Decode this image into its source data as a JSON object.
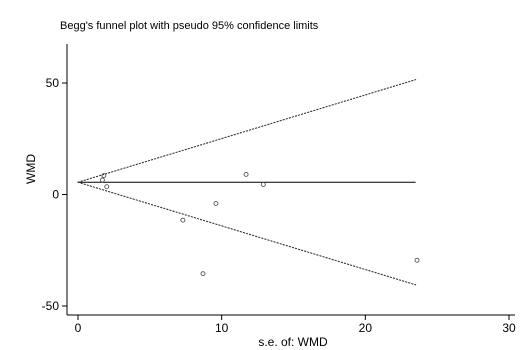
{
  "chart_data": {
    "type": "scatter",
    "title": "Begg's funnel plot with pseudo 95% confidence limits",
    "xlabel": "s.e. of: WMD",
    "ylabel": "WMD",
    "xlim": [
      0,
      30
    ],
    "ylim": [
      -50,
      50
    ],
    "xticks": [
      0,
      10,
      20,
      30
    ],
    "yticks": [
      -50,
      0,
      50
    ],
    "grid": false,
    "pooled_estimate": 5.5,
    "reference_line": {
      "x": [
        0,
        23.5
      ],
      "y": [
        5.5,
        5.5
      ]
    },
    "pseudo_ci_upper": {
      "x": [
        0,
        23.5
      ],
      "y": [
        5.5,
        51.5
      ]
    },
    "pseudo_ci_lower": {
      "x": [
        0,
        23.5
      ],
      "y": [
        5.5,
        -40.5
      ]
    },
    "points": [
      {
        "x": 1.8,
        "y": 8.5
      },
      {
        "x": 1.7,
        "y": 6.5
      },
      {
        "x": 2.0,
        "y": 3.5
      },
      {
        "x": 7.3,
        "y": -11.5
      },
      {
        "x": 8.7,
        "y": -35.5
      },
      {
        "x": 9.6,
        "y": -4.0
      },
      {
        "x": 11.7,
        "y": 9.0
      },
      {
        "x": 12.9,
        "y": 4.5
      },
      {
        "x": 23.6,
        "y": -29.5
      }
    ],
    "colors": {
      "axis": "#000000",
      "marker": "#555555",
      "ci_line": "#333333"
    }
  }
}
